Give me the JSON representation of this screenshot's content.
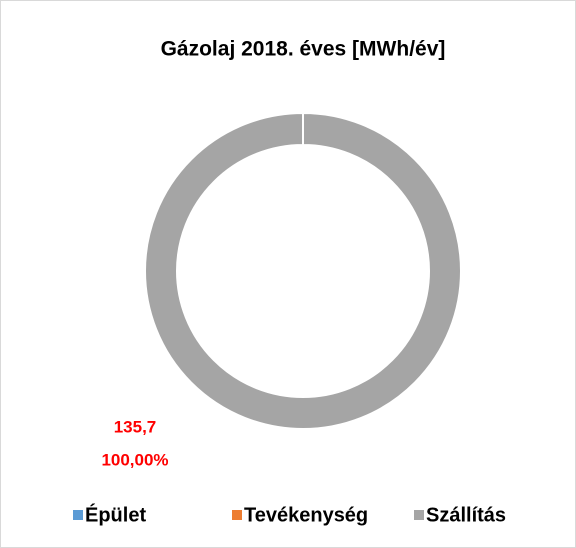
{
  "chart_data": {
    "type": "doughnut",
    "title": "Gázolaj 2018. éves [MWh/év]",
    "categories": [
      "Épület",
      "Tevékenység",
      "Szállítás"
    ],
    "values": [
      0,
      0,
      135.7
    ],
    "value_labels": [
      null,
      null,
      "135,7"
    ],
    "percent_labels": [
      null,
      null,
      "100,00%"
    ],
    "colors": [
      "#5b9bd5",
      "#ed7d31",
      "#a5a5a5"
    ],
    "label_color": "#ff0000",
    "legend": "bottom"
  }
}
